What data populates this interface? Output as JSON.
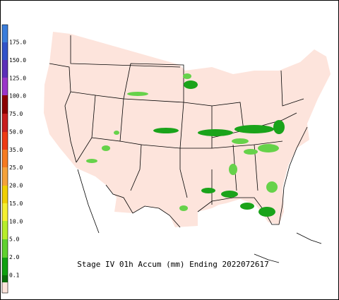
{
  "title": "Stage IV 01h Accum (mm) Ending 2022072617",
  "legend": {
    "labels": [
      "175.0",
      "150.0",
      "125.0",
      "100.0",
      "75.0",
      "50.0",
      "35.0",
      "25.0",
      "20.0",
      "15.0",
      "10.0",
      "5.0",
      "2.0",
      "0.1"
    ]
  }
}
